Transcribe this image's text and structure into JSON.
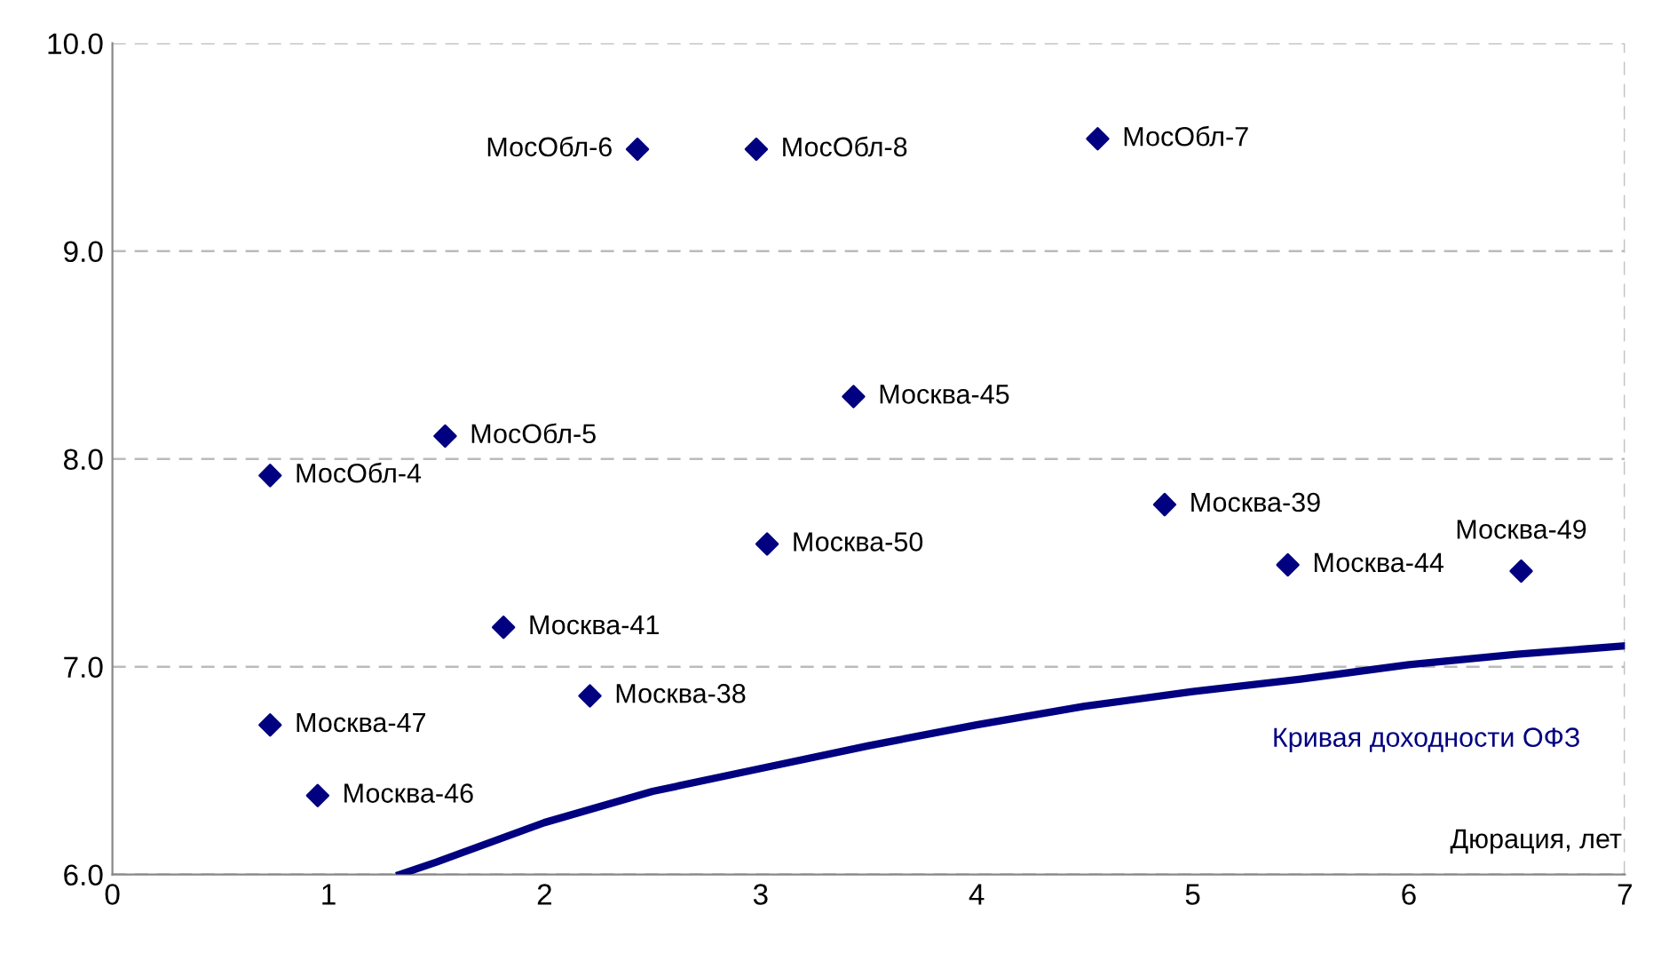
{
  "chart_data": {
    "type": "scatter",
    "xlabel": "Дюрация, лет",
    "xlim": [
      0,
      7
    ],
    "xticks": [
      0,
      1,
      2,
      3,
      4,
      5,
      6,
      7
    ],
    "ylim": [
      6.0,
      10.0
    ],
    "yticks": [
      {
        "value": 6,
        "label": "6.0"
      },
      {
        "value": 7,
        "label": "7.0"
      },
      {
        "value": 8,
        "label": "8.0"
      },
      {
        "value": 9,
        "label": "9.0"
      },
      {
        "value": 10,
        "label": "10.0"
      }
    ],
    "grid": "y",
    "series": [
      {
        "marker": "diamond",
        "color": "#000080",
        "x": [
          2.43,
          2.98,
          4.56,
          3.43,
          1.54,
          0.73,
          3.03,
          4.87,
          5.44,
          6.52,
          1.81,
          2.21,
          0.73,
          0.95
        ],
        "values": [
          9.49,
          9.49,
          9.54,
          8.3,
          8.11,
          7.92,
          7.59,
          7.78,
          7.49,
          7.46,
          7.19,
          6.86,
          6.72,
          6.38
        ]
      },
      {
        "type": "line",
        "marker": "none",
        "name": "Кривая доходности ОФЗ",
        "color": "#000080",
        "x": [
          1.33,
          1.5,
          2.0,
          2.5,
          3.0,
          3.5,
          4.0,
          4.5,
          5.0,
          5.5,
          6.0,
          6.5,
          7.0
        ],
        "values": [
          6.0,
          6.06,
          6.25,
          6.4,
          6.51,
          6.62,
          6.72,
          6.81,
          6.88,
          6.94,
          7.01,
          7.06,
          7.1
        ]
      }
    ],
    "annotations": [
      {
        "text": "МосОбл-6",
        "x": 2.43,
        "y": 9.49
      },
      {
        "text": "МосОбл-8",
        "x": 2.98,
        "y": 9.49
      },
      {
        "text": "МосОбл-7",
        "x": 4.56,
        "y": 9.54
      },
      {
        "text": "Москва-45",
        "x": 3.43,
        "y": 8.3
      },
      {
        "text": "МосОбл-5",
        "x": 1.54,
        "y": 8.11
      },
      {
        "text": "МосОбл-4",
        "x": 0.73,
        "y": 7.92
      },
      {
        "text": "Москва-50",
        "x": 3.03,
        "y": 7.59
      },
      {
        "text": "Москва-39",
        "x": 4.87,
        "y": 7.78
      },
      {
        "text": "Москва-44",
        "x": 5.44,
        "y": 7.49
      },
      {
        "text": "Москва-49",
        "x": 6.52,
        "y": 7.46
      },
      {
        "text": "Москва-41",
        "x": 1.81,
        "y": 7.19
      },
      {
        "text": "Москва-38",
        "x": 2.21,
        "y": 6.86
      },
      {
        "text": "Москва-47",
        "x": 0.73,
        "y": 6.72
      },
      {
        "text": "Москва-46",
        "x": 0.95,
        "y": 6.38
      }
    ]
  }
}
